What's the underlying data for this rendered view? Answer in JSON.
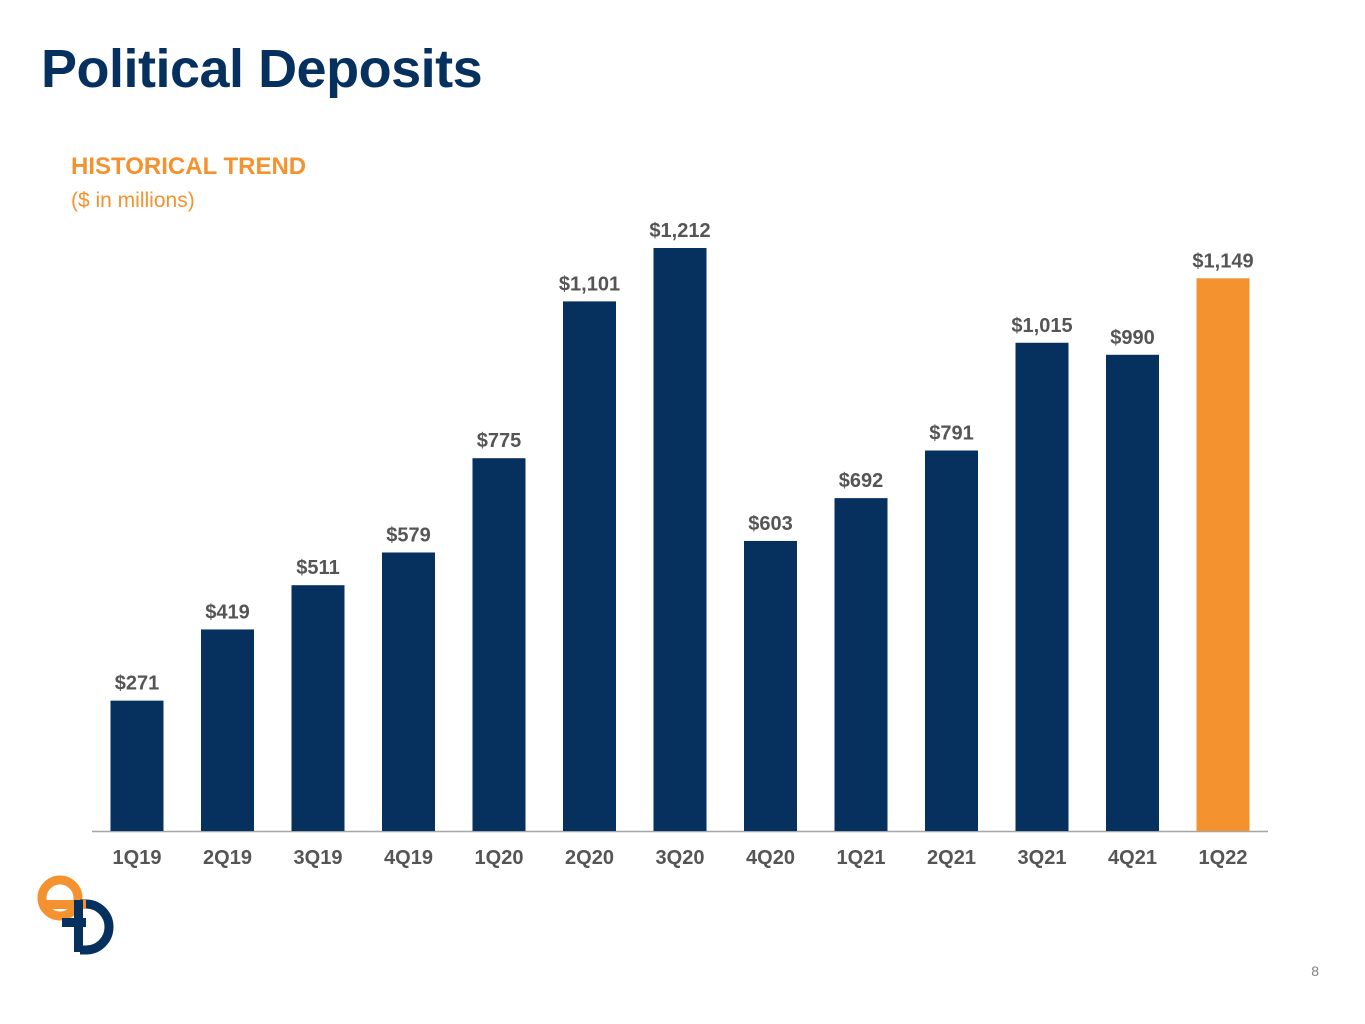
{
  "header": {
    "title": "Political Deposits",
    "subtitle": "HISTORICAL TREND",
    "units": "($ in millions)"
  },
  "footer": {
    "page_number": "8"
  },
  "colors": {
    "primary": "#06305e",
    "highlight": "#f4922f",
    "label": "#555555",
    "axis": "#a6a6a6"
  },
  "chart_data": {
    "type": "bar",
    "categories": [
      "1Q19",
      "2Q19",
      "3Q19",
      "4Q19",
      "1Q20",
      "2Q20",
      "3Q20",
      "4Q20",
      "1Q21",
      "2Q21",
      "3Q21",
      "4Q21",
      "1Q22"
    ],
    "values": [
      271,
      419,
      511,
      579,
      775,
      1101,
      1212,
      603,
      692,
      791,
      1015,
      990,
      1149
    ],
    "labels": [
      "$271",
      "$419",
      "$511",
      "$579",
      "$775",
      "$1,101",
      "$1,212",
      "$603",
      "$692",
      "$791",
      "$1,015",
      "$990",
      "$1,149"
    ],
    "highlight_index": 12,
    "ylim": [
      0,
      1212
    ],
    "grid": false,
    "legend": "none"
  }
}
